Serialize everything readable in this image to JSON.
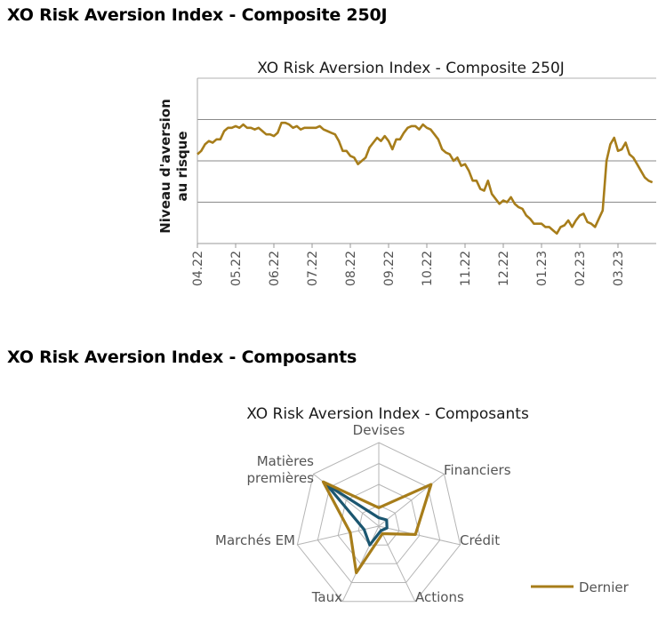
{
  "sections": {
    "composite_heading": "XO Risk Aversion Index - Composite 250J",
    "components_heading": "XO Risk Aversion Index - Composants"
  },
  "colors": {
    "line": "#a77d1a",
    "teal": "#1b5670",
    "grid": "#888888"
  },
  "chart_data": [
    {
      "type": "line",
      "title": "XO Risk Aversion Index - Composite 250J",
      "ylabel": "Niveau d'aversion au risque",
      "xlabel": "",
      "grid": true,
      "x_ticks": [
        "04.22",
        "05.22",
        "06.22",
        "07.22",
        "08.22",
        "09.22",
        "10.22",
        "11.22",
        "12.22",
        "01.23",
        "02.23",
        "03.23"
      ],
      "ylim": [
        0,
        1
      ],
      "series": [
        {
          "name": "",
          "x": [
            0,
            0.1,
            0.2,
            0.3,
            0.4,
            0.5,
            0.6,
            0.7,
            0.8,
            0.9,
            1.0,
            1.1,
            1.2,
            1.3,
            1.4,
            1.5,
            1.6,
            1.7,
            1.8,
            1.9,
            2.0,
            2.1,
            2.2,
            2.3,
            2.4,
            2.5,
            2.6,
            2.7,
            2.8,
            2.9,
            3.0,
            3.1,
            3.2,
            3.3,
            3.4,
            3.5,
            3.6,
            3.7,
            3.8,
            3.9,
            4.0,
            4.1,
            4.2,
            4.3,
            4.4,
            4.5,
            4.6,
            4.7,
            4.8,
            4.9,
            5.0,
            5.1,
            5.2,
            5.3,
            5.4,
            5.5,
            5.6,
            5.7,
            5.8,
            5.9,
            6.0,
            6.1,
            6.2,
            6.3,
            6.4,
            6.5,
            6.6,
            6.7,
            6.8,
            6.9,
            7.0,
            7.1,
            7.2,
            7.3,
            7.4,
            7.5,
            7.6,
            7.7,
            7.8,
            7.9,
            8.0,
            8.1,
            8.2,
            8.3,
            8.4,
            8.5,
            8.6,
            8.7,
            8.8,
            8.9,
            9.0,
            9.1,
            9.2,
            9.3,
            9.4,
            9.5,
            9.6,
            9.7,
            9.8,
            9.9,
            10.0,
            10.1,
            10.2,
            10.3,
            10.4,
            10.5,
            10.6,
            10.7,
            10.8,
            10.9,
            11.0,
            11.1,
            11.2,
            11.3,
            11.4,
            11.5,
            11.6,
            11.7,
            11.8,
            11.9
          ],
          "values": [
            0.54,
            0.56,
            0.6,
            0.62,
            0.61,
            0.63,
            0.63,
            0.68,
            0.7,
            0.7,
            0.71,
            0.7,
            0.72,
            0.7,
            0.7,
            0.69,
            0.7,
            0.68,
            0.66,
            0.66,
            0.65,
            0.67,
            0.73,
            0.73,
            0.72,
            0.7,
            0.71,
            0.69,
            0.7,
            0.7,
            0.7,
            0.7,
            0.71,
            0.69,
            0.68,
            0.67,
            0.66,
            0.62,
            0.56,
            0.56,
            0.53,
            0.52,
            0.48,
            0.5,
            0.52,
            0.58,
            0.61,
            0.64,
            0.62,
            0.65,
            0.62,
            0.57,
            0.63,
            0.63,
            0.67,
            0.7,
            0.71,
            0.71,
            0.69,
            0.72,
            0.7,
            0.69,
            0.66,
            0.63,
            0.57,
            0.55,
            0.54,
            0.5,
            0.52,
            0.47,
            0.48,
            0.44,
            0.38,
            0.38,
            0.33,
            0.32,
            0.38,
            0.3,
            0.27,
            0.24,
            0.26,
            0.25,
            0.28,
            0.24,
            0.22,
            0.21,
            0.17,
            0.15,
            0.12,
            0.12,
            0.12,
            0.1,
            0.1,
            0.08,
            0.06,
            0.1,
            0.11,
            0.14,
            0.1,
            0.14,
            0.17,
            0.18,
            0.13,
            0.12,
            0.1,
            0.15,
            0.2,
            0.5,
            0.6,
            0.64,
            0.56,
            0.57,
            0.61,
            0.54,
            0.52,
            0.48,
            0.44,
            0.4,
            0.38,
            0.37
          ]
        }
      ]
    },
    {
      "type": "radar",
      "title": "XO Risk Aversion Index - Composants",
      "axes": [
        "Devises",
        "Financiers",
        "Crédit",
        "Actions",
        "Taux",
        "Marchés EM",
        "Matières premières"
      ],
      "rmax": 1,
      "rings": 4,
      "legend": "bottom-right",
      "series": [
        {
          "name": "Dernier",
          "color": "#a77d1a",
          "values": [
            0.22,
            0.8,
            0.45,
            0.1,
            0.62,
            0.35,
            0.85
          ]
        },
        {
          "name": "",
          "color": "#1b5670",
          "values": [
            0.1,
            0.12,
            0.1,
            0.06,
            0.25,
            0.18,
            0.8
          ]
        }
      ]
    }
  ]
}
